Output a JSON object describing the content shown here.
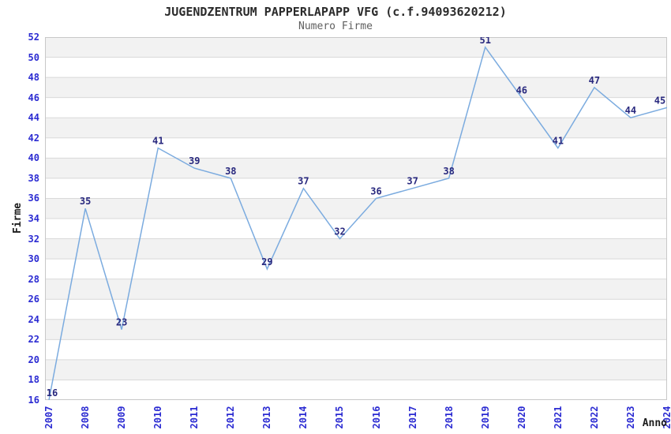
{
  "title": "JUGENDZENTRUM PAPPERLAPAPP VFG (c.f.94093620212)",
  "subtitle": "Numero Firme",
  "chart_data": {
    "type": "line",
    "title": "JUGENDZENTRUM PAPPERLAPAPP VFG (c.f.94093620212)",
    "subtitle": "Numero Firme",
    "xlabel": "Anno",
    "ylabel": "Firme",
    "categories": [
      "2007",
      "2008",
      "2009",
      "2010",
      "2011",
      "2012",
      "2013",
      "2014",
      "2015",
      "2016",
      "2017",
      "2018",
      "2019",
      "2020",
      "2021",
      "2022",
      "2023",
      "2024"
    ],
    "values": [
      16,
      35,
      23,
      41,
      39,
      38,
      29,
      37,
      32,
      36,
      37,
      38,
      51,
      46,
      41,
      47,
      44,
      45
    ],
    "ylim": [
      16,
      52
    ],
    "ytick_step": 2,
    "yticks": [
      16,
      18,
      20,
      22,
      24,
      26,
      28,
      30,
      32,
      34,
      36,
      38,
      40,
      42,
      44,
      46,
      48,
      50,
      52
    ],
    "grid": "horizontal-bands",
    "legend_position": "none",
    "point_labels_visible": true
  },
  "colors": {
    "line": "#7babdf",
    "point_label": "#28287e",
    "tick_label": "#2b2bd2",
    "title": "#2b2b2b",
    "subtitle": "#5f5f5f",
    "axis_title": "#1c1c1c",
    "band_gray": "#f2f2f2",
    "band_white": "#ffffff",
    "gridline": "#d9d9d9",
    "plot_border": "#c8c8c8",
    "background": "#ffffff"
  }
}
